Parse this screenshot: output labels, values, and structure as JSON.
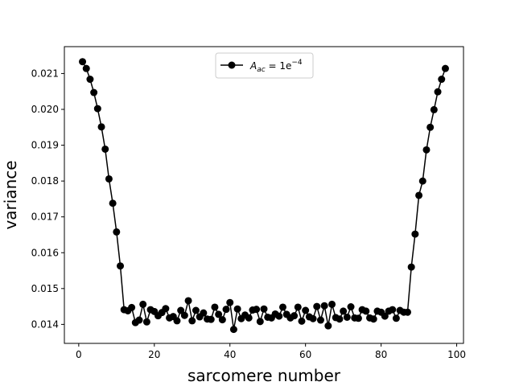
{
  "chart_data": {
    "type": "line",
    "xlabel": "sarcomere number",
    "ylabel": "variance",
    "xlim": [
      -3.8,
      101.8
    ],
    "ylim": [
      0.01347,
      0.02175
    ],
    "x_ticks": [
      0,
      20,
      40,
      60,
      80,
      100
    ],
    "y_ticks": [
      0.014,
      0.015,
      0.016,
      0.017,
      0.018,
      0.019,
      0.02,
      0.021
    ],
    "x_tick_labels": [
      "0",
      "20",
      "40",
      "60",
      "80",
      "100"
    ],
    "y_tick_labels": [
      "0.014",
      "0.015",
      "0.016",
      "0.017",
      "0.018",
      "0.019",
      "0.020",
      "0.021"
    ],
    "grid": false,
    "legend_position": "top-center",
    "line_color": "#000000",
    "marker": "circle",
    "series": [
      {
        "legend": {
          "base": "A",
          "sub": "ac",
          "mid": " = 1e",
          "sup": "−4"
        },
        "x": [
          1,
          2,
          3,
          4,
          5,
          6,
          7,
          8,
          9,
          10,
          11,
          12,
          13,
          14,
          15,
          16,
          17,
          18,
          19,
          20,
          21,
          22,
          23,
          24,
          25,
          26,
          27,
          28,
          29,
          30,
          31,
          32,
          33,
          34,
          35,
          36,
          37,
          38,
          39,
          40,
          41,
          42,
          43,
          44,
          45,
          46,
          47,
          48,
          49,
          50,
          51,
          52,
          53,
          54,
          55,
          56,
          57,
          58,
          59,
          60,
          61,
          62,
          63,
          64,
          65,
          66,
          67,
          68,
          69,
          70,
          71,
          72,
          73,
          74,
          75,
          76,
          77,
          78,
          79,
          80,
          81,
          82,
          83,
          84,
          85,
          86,
          87,
          88,
          89,
          90,
          91,
          92,
          93,
          94,
          95,
          96,
          97
        ],
        "y": [
          0.02133,
          0.02114,
          0.02084,
          0.02047,
          0.02002,
          0.01951,
          0.01889,
          0.01806,
          0.01738,
          0.01658,
          0.01563,
          0.01441,
          0.01438,
          0.01447,
          0.01405,
          0.01412,
          0.01456,
          0.01407,
          0.01441,
          0.01436,
          0.01424,
          0.01433,
          0.01444,
          0.01418,
          0.01422,
          0.0141,
          0.01439,
          0.01425,
          0.01466,
          0.0141,
          0.01439,
          0.01421,
          0.01432,
          0.01415,
          0.01414,
          0.01448,
          0.01428,
          0.01413,
          0.01442,
          0.01461,
          0.01386,
          0.01443,
          0.01416,
          0.01426,
          0.01418,
          0.0144,
          0.01442,
          0.01408,
          0.01443,
          0.0142,
          0.01418,
          0.01429,
          0.01423,
          0.01448,
          0.01428,
          0.01418,
          0.01424,
          0.01448,
          0.01409,
          0.01439,
          0.01421,
          0.01416,
          0.0145,
          0.01412,
          0.01452,
          0.01396,
          0.01456,
          0.01419,
          0.01415,
          0.01437,
          0.0142,
          0.01449,
          0.01418,
          0.01417,
          0.01441,
          0.01437,
          0.01418,
          0.01415,
          0.01437,
          0.01434,
          0.01423,
          0.01437,
          0.01441,
          0.01417,
          0.01439,
          0.01434,
          0.01434,
          0.0156,
          0.01652,
          0.0176,
          0.018,
          0.01887,
          0.0195,
          0.01999,
          0.02049,
          0.02084,
          0.02114
        ]
      }
    ]
  }
}
